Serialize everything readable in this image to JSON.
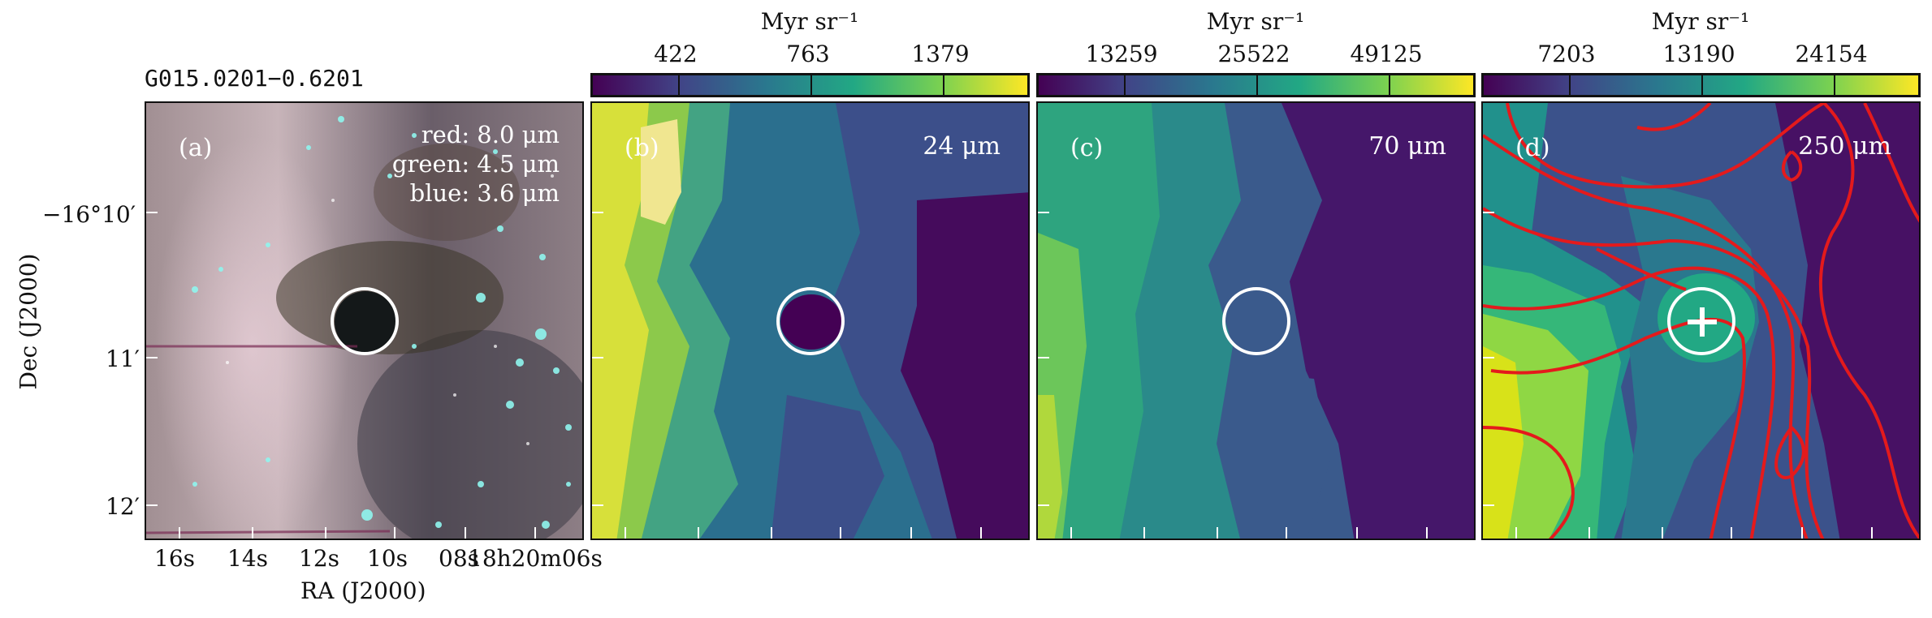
{
  "title": "G015.0201−0.6201",
  "axes": {
    "ylabel": "Dec (J2000)",
    "xlabel": "RA (J2000)",
    "y_ticks": [
      "−16°10′",
      "11′",
      "12′"
    ],
    "x_ticks": [
      "16s",
      "14s",
      "12s",
      "10s",
      "08s",
      "18h20m06s"
    ]
  },
  "panels": {
    "a": {
      "label": "(a)",
      "rgb": [
        "red: 8.0 μm",
        "green: 4.5 μm",
        "blue: 3.6 μm"
      ]
    },
    "b": {
      "label": "(b)",
      "band": "24 μm",
      "colorbar": {
        "unit": "Myr sr⁻¹",
        "ticks": [
          "422",
          "763",
          "1379"
        ]
      }
    },
    "c": {
      "label": "(c)",
      "band": "70 μm",
      "colorbar": {
        "unit": "Myr sr⁻¹",
        "ticks": [
          "13259",
          "25522",
          "49125"
        ]
      }
    },
    "d": {
      "label": "(d)",
      "band": "250 μm",
      "colorbar": {
        "unit": "Myr sr⁻¹",
        "ticks": [
          "7203",
          "13190",
          "24154"
        ]
      }
    }
  },
  "colors": {
    "colormap": [
      "#440154",
      "#414487",
      "#2a788e",
      "#22a884",
      "#7ad151",
      "#fde725"
    ],
    "contour": "#e41a1c",
    "marker": "#ffffff"
  }
}
